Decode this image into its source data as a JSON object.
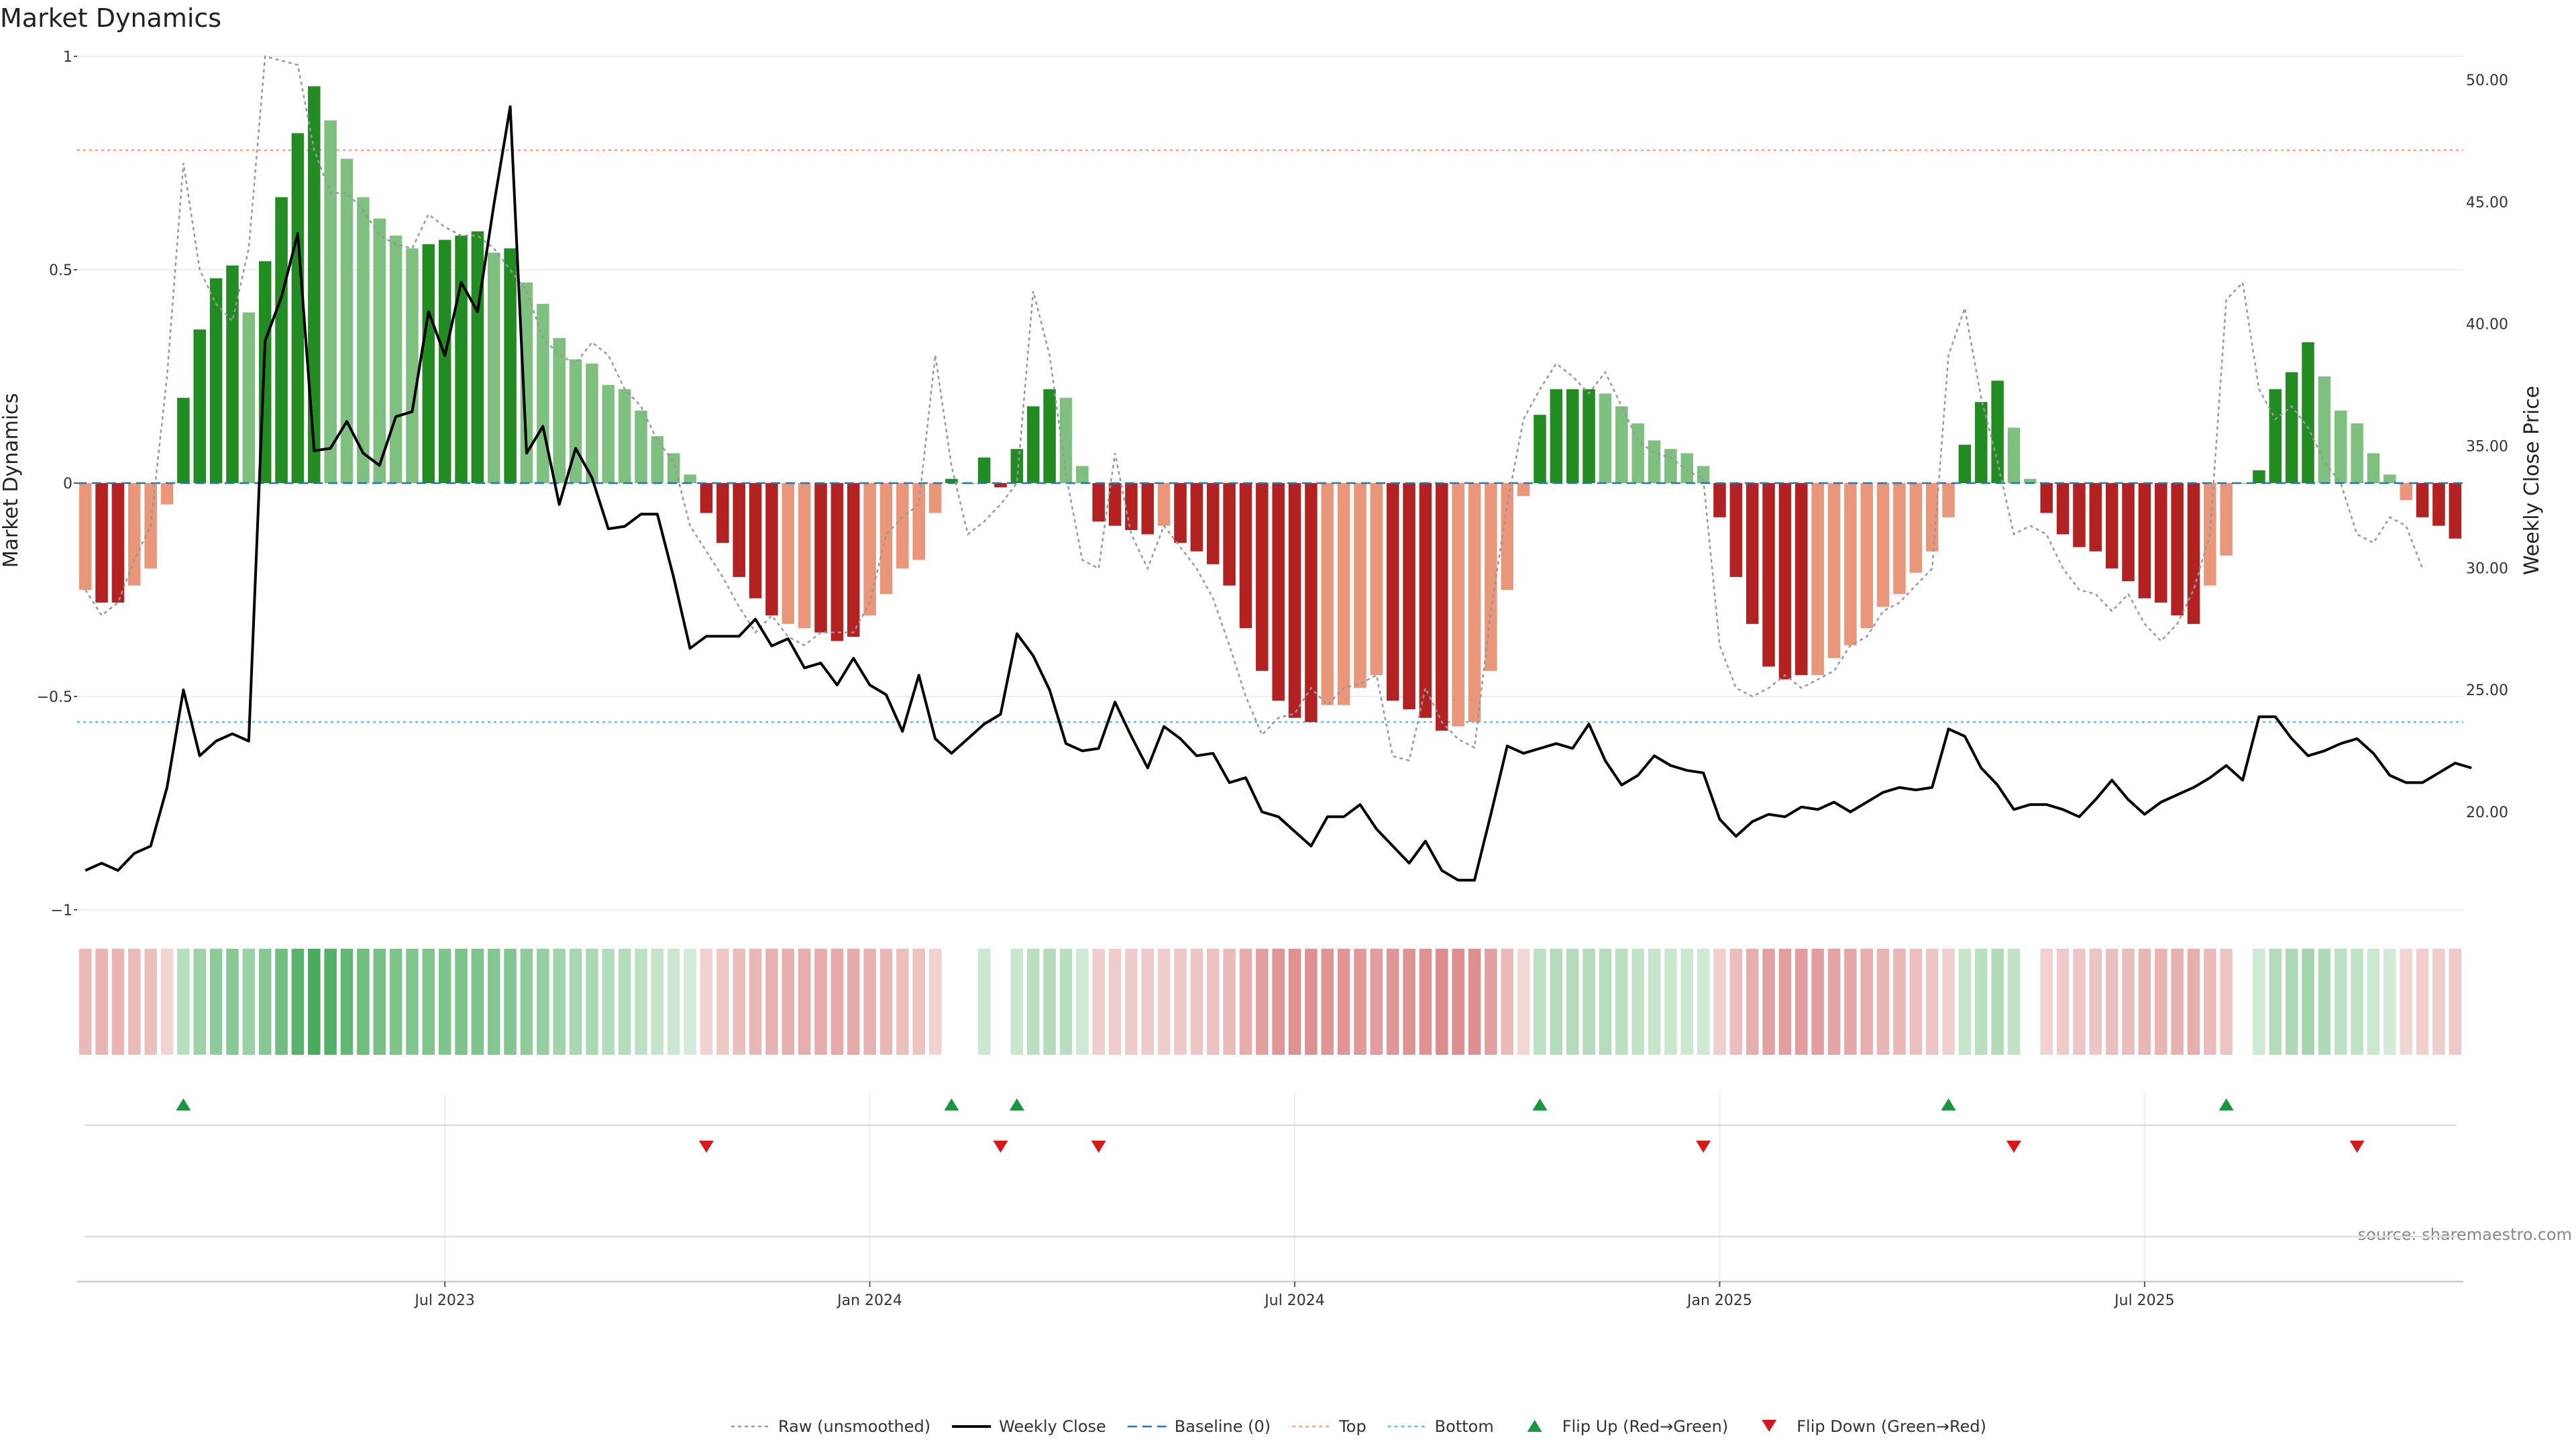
{
  "chart_data": {
    "type": "bar",
    "title": "Market Dynamics",
    "ylabel_left": "Market Dynamics",
    "ylabel_right": "Weekly Close Price",
    "source": "source: sharemaestro.com",
    "left_ylim": [
      -1,
      1
    ],
    "left_ticks": [
      1,
      0.5,
      0,
      -0.5,
      -1
    ],
    "left_tick_labels": [
      "1",
      "0.5",
      "0",
      "−0.5",
      "−1"
    ],
    "right_ylim": [
      15,
      51
    ],
    "right_ticks": [
      50,
      45,
      40,
      35,
      30,
      25,
      20
    ],
    "right_tick_labels": [
      "50.00",
      "45.00",
      "40.00",
      "35.00",
      "30.00",
      "25.00",
      "20.00"
    ],
    "x_tick_labels": [
      "Jul 2023",
      "Jan 2024",
      "Jul 2024",
      "Jan 2025",
      "Jul 2025"
    ],
    "x_tick_index": [
      22,
      48,
      74,
      100,
      126
    ],
    "top_threshold": 0.78,
    "bottom_threshold": -0.56,
    "baseline": 0,
    "grid": true,
    "legend_position": "bottom-center",
    "colors": {
      "strong_green": "#228b22",
      "light_green": "#7fbf7f",
      "strong_red": "#b22222",
      "light_red": "#e9967a",
      "raw_line": "#999999",
      "close_line": "#000000",
      "baseline": "#1f77b4",
      "top": "#f4a582",
      "bottom": "#5bc0de",
      "flip_up": "#1a9641",
      "flip_down": "#d7191c"
    },
    "series": [
      {
        "name": "Market Dynamics",
        "values": [
          -0.25,
          -0.28,
          -0.28,
          -0.24,
          -0.2,
          -0.05,
          0.2,
          0.36,
          0.48,
          0.51,
          0.4,
          0.52,
          0.67,
          0.82,
          0.93,
          0.85,
          0.76,
          0.67,
          0.62,
          0.58,
          0.55,
          0.56,
          0.57,
          0.58,
          0.59,
          0.54,
          0.55,
          0.47,
          0.42,
          0.34,
          0.29,
          0.28,
          0.23,
          0.22,
          0.17,
          0.11,
          0.07,
          0.02,
          -0.07,
          -0.14,
          -0.22,
          -0.27,
          -0.31,
          -0.33,
          -0.34,
          -0.35,
          -0.37,
          -0.36,
          -0.31,
          -0.26,
          -0.2,
          -0.18,
          -0.07,
          0.01,
          0.0,
          0.06,
          -0.01,
          0.08,
          0.18,
          0.22,
          0.2,
          0.04,
          -0.09,
          -0.1,
          -0.11,
          -0.12,
          -0.1,
          -0.14,
          -0.16,
          -0.19,
          -0.24,
          -0.34,
          -0.44,
          -0.51,
          -0.55,
          -0.56,
          -0.52,
          -0.52,
          -0.48,
          -0.45,
          -0.51,
          -0.53,
          -0.55,
          -0.58,
          -0.57,
          -0.56,
          -0.44,
          -0.25,
          -0.03,
          0.16,
          0.22,
          0.22,
          0.22,
          0.21,
          0.18,
          0.14,
          0.1,
          0.08,
          0.07,
          0.04,
          -0.08,
          -0.22,
          -0.33,
          -0.43,
          -0.46,
          -0.45,
          -0.45,
          -0.41,
          -0.38,
          -0.34,
          -0.29,
          -0.26,
          -0.21,
          -0.16,
          -0.08,
          0.09,
          0.19,
          0.24,
          0.13,
          0.01,
          -0.07,
          -0.12,
          -0.15,
          -0.16,
          -0.2,
          -0.23,
          -0.27,
          -0.28,
          -0.31,
          -0.33,
          -0.24,
          -0.17,
          0.0,
          0.03,
          0.22,
          0.26,
          0.33,
          0.25,
          0.17,
          0.14,
          0.07,
          0.02,
          -0.04,
          -0.08,
          -0.1,
          -0.13
        ],
        "strength": [
          "light",
          "strong",
          "strong",
          "light",
          "light",
          "light",
          "strong",
          "strong",
          "strong",
          "strong",
          "light",
          "strong",
          "strong",
          "strong",
          "strong",
          "light",
          "light",
          "light",
          "light",
          "light",
          "light",
          "strong",
          "strong",
          "strong",
          "strong",
          "light",
          "strong",
          "light",
          "light",
          "light",
          "light",
          "light",
          "light",
          "light",
          "light",
          "light",
          "light",
          "light",
          "strong",
          "strong",
          "strong",
          "strong",
          "strong",
          "light",
          "light",
          "strong",
          "strong",
          "strong",
          "light",
          "light",
          "light",
          "light",
          "light",
          "strong",
          "strong",
          "strong",
          "strong",
          "strong",
          "strong",
          "strong",
          "light",
          "light",
          "strong",
          "strong",
          "strong",
          "strong",
          "light",
          "strong",
          "strong",
          "strong",
          "strong",
          "strong",
          "strong",
          "strong",
          "strong",
          "strong",
          "light",
          "light",
          "light",
          "light",
          "strong",
          "strong",
          "strong",
          "strong",
          "light",
          "light",
          "light",
          "light",
          "light",
          "strong",
          "strong",
          "strong",
          "strong",
          "light",
          "light",
          "light",
          "light",
          "light",
          "light",
          "light",
          "strong",
          "strong",
          "strong",
          "strong",
          "strong",
          "strong",
          "light",
          "light",
          "light",
          "light",
          "light",
          "light",
          "light",
          "light",
          "light",
          "strong",
          "strong",
          "strong",
          "light",
          "light",
          "strong",
          "strong",
          "strong",
          "strong",
          "strong",
          "strong",
          "strong",
          "strong",
          "strong",
          "strong",
          "light",
          "light",
          "light",
          "strong",
          "strong",
          "strong",
          "strong",
          "light",
          "light",
          "light",
          "light",
          "light",
          "light",
          "strong",
          "strong",
          "strong"
        ]
      },
      {
        "name": "Raw (unsmoothed)",
        "values": [
          -0.25,
          -0.31,
          -0.28,
          -0.18,
          -0.1,
          0.25,
          0.75,
          0.5,
          0.42,
          0.38,
          0.55,
          1.0,
          0.99,
          0.98,
          0.78,
          0.68,
          0.68,
          0.64,
          0.58,
          0.56,
          0.55,
          0.63,
          0.6,
          0.58,
          0.58,
          0.55,
          0.5,
          0.45,
          0.34,
          0.3,
          0.28,
          0.33,
          0.3,
          0.22,
          0.18,
          0.1,
          0.05,
          -0.1,
          -0.16,
          -0.22,
          -0.29,
          -0.35,
          -0.31,
          -0.36,
          -0.38,
          -0.35,
          -0.35,
          -0.35,
          -0.28,
          -0.12,
          -0.08,
          -0.05,
          0.3,
          0.04,
          -0.12,
          -0.09,
          -0.05,
          0.0,
          0.45,
          0.3,
          0.02,
          -0.18,
          -0.2,
          0.07,
          -0.12,
          -0.2,
          -0.1,
          -0.15,
          -0.2,
          -0.27,
          -0.38,
          -0.5,
          -0.59,
          -0.55,
          -0.54,
          -0.48,
          -0.52,
          -0.48,
          -0.47,
          -0.45,
          -0.64,
          -0.65,
          -0.48,
          -0.56,
          -0.6,
          -0.62,
          -0.3,
          -0.05,
          0.15,
          0.22,
          0.28,
          0.25,
          0.21,
          0.26,
          0.18,
          0.1,
          0.07,
          0.06,
          0.03,
          0.01,
          -0.38,
          -0.48,
          -0.5,
          -0.48,
          -0.45,
          -0.48,
          -0.46,
          -0.44,
          -0.38,
          -0.36,
          -0.3,
          -0.28,
          -0.24,
          -0.2,
          0.3,
          0.41,
          0.2,
          0.05,
          -0.12,
          -0.1,
          -0.12,
          -0.2,
          -0.25,
          -0.26,
          -0.3,
          -0.26,
          -0.33,
          -0.37,
          -0.33,
          -0.25,
          -0.12,
          0.43,
          0.47,
          0.22,
          0.15,
          0.18,
          0.13,
          0.05,
          0.0,
          -0.12,
          -0.14,
          -0.08,
          -0.1,
          -0.2
        ]
      },
      {
        "name": "Weekly Close",
        "values": [
          17.6,
          17.9,
          17.6,
          18.3,
          18.6,
          21.0,
          25.0,
          22.3,
          22.9,
          23.2,
          22.9,
          39.3,
          41.1,
          43.7,
          34.8,
          34.9,
          36.0,
          34.7,
          34.2,
          36.2,
          36.4,
          40.5,
          38.7,
          41.7,
          40.5,
          44.9,
          48.9,
          34.7,
          35.8,
          32.6,
          34.9,
          33.7,
          31.6,
          31.7,
          32.2,
          32.2,
          29.6,
          26.7,
          27.2,
          27.2,
          27.2,
          27.9,
          26.8,
          27.1,
          25.9,
          26.1,
          25.2,
          26.3,
          25.2,
          24.8,
          23.3,
          25.6,
          23.0,
          22.4,
          23.0,
          23.6,
          24.0,
          27.3,
          26.4,
          25.0,
          22.8,
          22.5,
          22.6,
          24.5,
          23.1,
          21.8,
          23.5,
          23.0,
          22.3,
          22.4,
          21.2,
          21.4,
          20.0,
          19.8,
          19.2,
          18.6,
          19.8,
          19.8,
          20.3,
          19.3,
          18.6,
          17.9,
          18.8,
          17.6,
          17.2,
          17.2,
          19.9,
          22.7,
          22.4,
          22.6,
          22.8,
          22.6,
          23.6,
          22.1,
          21.1,
          21.5,
          22.3,
          21.9,
          21.7,
          21.6,
          19.7,
          19.0,
          19.6,
          19.9,
          19.8,
          20.2,
          20.1,
          20.4,
          20.0,
          20.4,
          20.8,
          21.0,
          20.9,
          21.0,
          23.4,
          23.1,
          21.8,
          21.1,
          20.1,
          20.3,
          20.3,
          20.1,
          19.8,
          20.5,
          21.3,
          20.5,
          19.9,
          20.4,
          20.7,
          21.0,
          21.4,
          21.9,
          21.3,
          23.9,
          23.9,
          23.0,
          22.3,
          22.5,
          22.8,
          23.0,
          22.4,
          21.5,
          21.2,
          21.2,
          21.6,
          22.0,
          21.8
        ]
      }
    ],
    "flip_up_index": [
      6,
      53,
      57,
      89,
      114,
      131
    ],
    "flip_down_index": [
      38,
      56,
      62,
      99,
      118,
      139
    ],
    "legend": [
      {
        "label": "Raw (unsmoothed)",
        "kind": "dotted-line",
        "color": "#999999"
      },
      {
        "label": "Weekly Close",
        "kind": "solid-line",
        "color": "#000000"
      },
      {
        "label": "Baseline (0)",
        "kind": "dashed-line",
        "color": "#1f77b4"
      },
      {
        "label": "Top",
        "kind": "dotted-line",
        "color": "#f4a582"
      },
      {
        "label": "Bottom",
        "kind": "dotted-line",
        "color": "#5bc0de"
      },
      {
        "label": "Flip Up (Red→Green)",
        "kind": "triangle-up",
        "color": "#1a9641"
      },
      {
        "label": "Flip Down (Green→Red)",
        "kind": "triangle-down",
        "color": "#d7191c"
      }
    ]
  }
}
